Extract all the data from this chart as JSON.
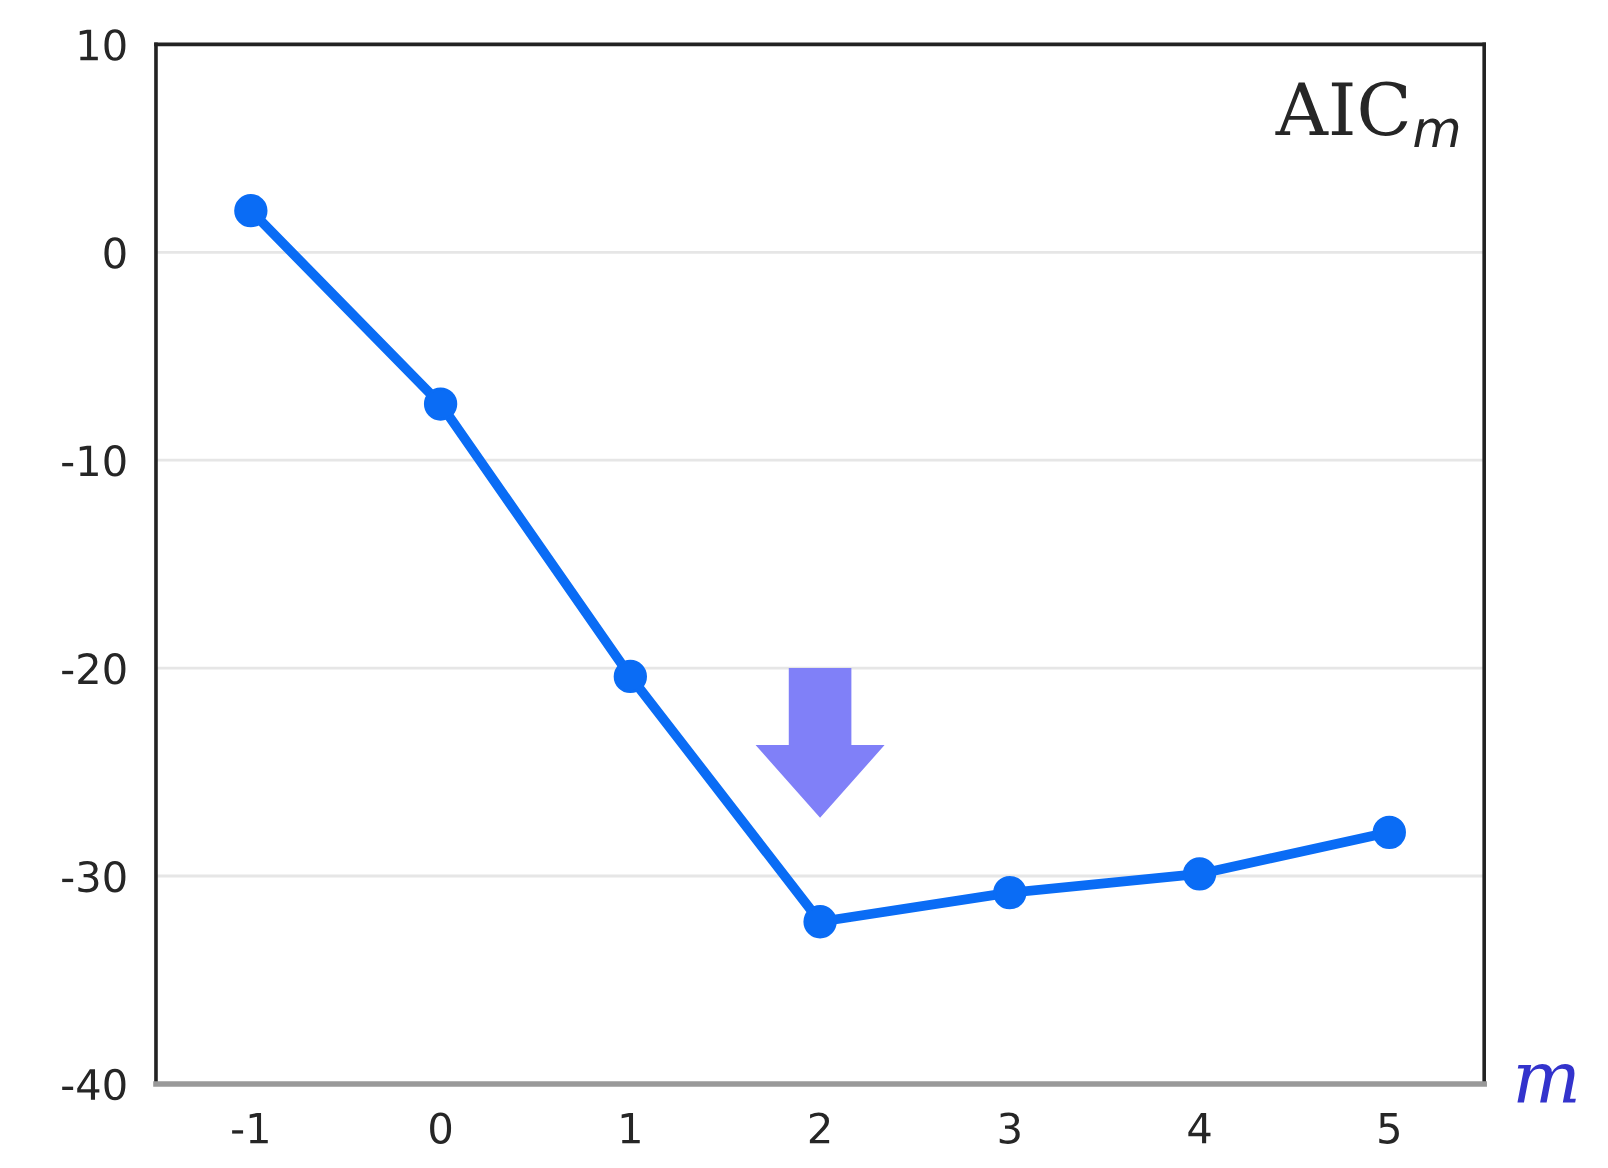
{
  "chart_data": {
    "type": "line",
    "categories": [
      "-1",
      "0",
      "1",
      "2",
      "3",
      "4",
      "5"
    ],
    "series": [
      {
        "color": "#0a6cf5",
        "values": [
          2.0,
          -7.3,
          -20.4,
          -32.2,
          -30.8,
          -29.9,
          -27.9
        ]
      }
    ],
    "xlabel": "m",
    "annotations": [
      "AIC$_{m}$"
    ],
    "ylim": [
      -40,
      10
    ],
    "yticks": [
      -40,
      -30,
      -20,
      -10,
      0,
      10
    ],
    "grid": "y",
    "marker": "circle",
    "line_style": "solid",
    "legend": false
  }
}
